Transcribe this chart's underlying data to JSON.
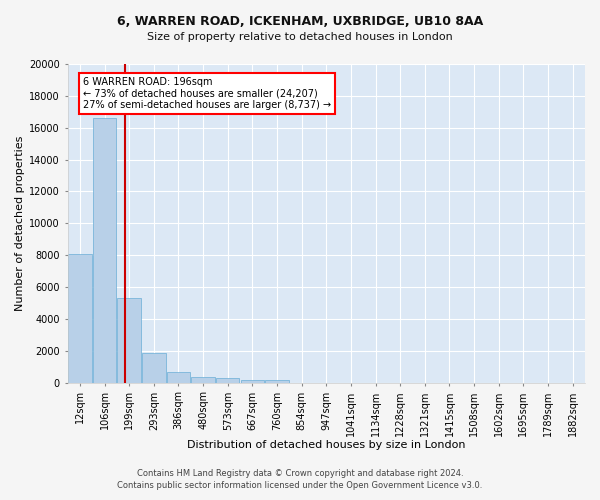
{
  "title_line1": "6, WARREN ROAD, ICKENHAM, UXBRIDGE, UB10 8AA",
  "title_line2": "Size of property relative to detached houses in London",
  "xlabel": "Distribution of detached houses by size in London",
  "ylabel": "Number of detached properties",
  "bar_color": "#b8d0e8",
  "bar_edge_color": "#6aaed6",
  "categories": [
    "12sqm",
    "106sqm",
    "199sqm",
    "293sqm",
    "386sqm",
    "480sqm",
    "573sqm",
    "667sqm",
    "760sqm",
    "854sqm",
    "947sqm",
    "1041sqm",
    "1134sqm",
    "1228sqm",
    "1321sqm",
    "1415sqm",
    "1508sqm",
    "1602sqm",
    "1695sqm",
    "1789sqm",
    "1882sqm"
  ],
  "values": [
    8100,
    16600,
    5300,
    1850,
    650,
    350,
    270,
    200,
    170,
    0,
    0,
    0,
    0,
    0,
    0,
    0,
    0,
    0,
    0,
    0,
    0
  ],
  "ylim": [
    0,
    20000
  ],
  "yticks": [
    0,
    2000,
    4000,
    6000,
    8000,
    10000,
    12000,
    14000,
    16000,
    18000,
    20000
  ],
  "property_line_x": 1.82,
  "annotation_box_text": "6 WARREN ROAD: 196sqm\n← 73% of detached houses are smaller (24,207)\n27% of semi-detached houses are larger (8,737) →",
  "vline_color": "#cc0000",
  "footer_line1": "Contains HM Land Registry data © Crown copyright and database right 2024.",
  "footer_line2": "Contains public sector information licensed under the Open Government Licence v3.0.",
  "figure_bg": "#f5f5f5",
  "axes_bg": "#dce8f5",
  "grid_color": "#ffffff",
  "title_fontsize": 9,
  "subtitle_fontsize": 8,
  "ylabel_fontsize": 8,
  "xlabel_fontsize": 8,
  "tick_fontsize": 7,
  "footer_fontsize": 6
}
